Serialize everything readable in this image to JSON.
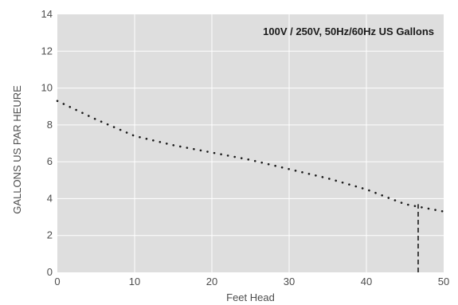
{
  "chart_data": {
    "type": "line",
    "title": "100V / 250V, 50Hz/60Hz US Gallons",
    "xlabel": "Feet Head",
    "ylabel": "GALLONS US PAR HEURE",
    "xlim": [
      0,
      50
    ],
    "ylim": [
      0,
      14
    ],
    "xticks": [
      "0",
      "10",
      "20",
      "30",
      "40",
      "50"
    ],
    "yticks": [
      "0",
      "2",
      "4",
      "6",
      "8",
      "10",
      "12",
      "14"
    ],
    "grid": true,
    "series": [
      {
        "style": "dotted",
        "x": [
          0,
          5,
          10,
          15,
          20,
          25,
          30,
          35,
          40,
          45,
          50
        ],
        "y": [
          9.3,
          8.3,
          7.4,
          6.9,
          6.5,
          6.1,
          5.6,
          5.1,
          4.5,
          3.7,
          3.3
        ]
      },
      {
        "style": "dashed",
        "x": [
          46.7,
          46.7
        ],
        "y": [
          0,
          3.7
        ]
      }
    ],
    "colors": {
      "plot_background": "#dedede",
      "grid": "#ffffff",
      "line": "#1a1a1a"
    }
  }
}
